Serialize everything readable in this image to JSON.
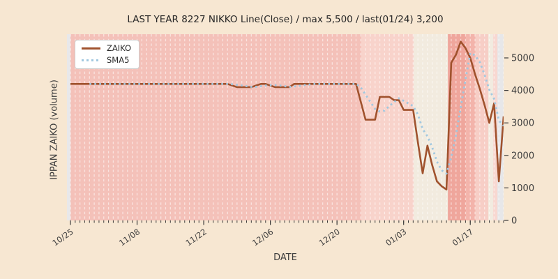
{
  "title": "LAST YEAR 8227 NIKKO Line(Close) / max 5,500 / last(01/24) 3,200",
  "axes": {
    "x_label": "DATE",
    "y_label": "IPPAN ZAIKO (volume)"
  },
  "legend": [
    {
      "label": "ZAIKO",
      "style": "solid",
      "color": "#a0522d"
    },
    {
      "label": "SMA5",
      "style": "dotted",
      "color": "#a1c8e0"
    }
  ],
  "colors": {
    "figure_bg": "#f7e7d2",
    "zaiko_line": "#a0522d",
    "sma5_line": "#a1c8e0",
    "grid_line": "rgba(255,255,255,0.55)",
    "tick_mark": "#3a3a3a",
    "tick_text": "#3d3d3d",
    "legend_bg": "#ffffff",
    "legend_border": "#cccccc"
  },
  "chart_data": {
    "type": "line",
    "title": "LAST YEAR 8227 NIKKO Line(Close) / max 5,500 / last(01/24) 3,200",
    "xlabel": "DATE",
    "ylabel": "IPPAN ZAIKO (volume)",
    "x_unit": "days since 10/25",
    "xlim": [
      -0.73,
      91
    ],
    "ylim": [
      0,
      5730
    ],
    "y_ticks": [
      0,
      1000,
      2000,
      3000,
      4000,
      5000
    ],
    "x_ticks": [
      {
        "day": 0,
        "label": "10/25"
      },
      {
        "day": 14,
        "label": "11/08"
      },
      {
        "day": 28,
        "label": "11/22"
      },
      {
        "day": 42,
        "label": "12/06"
      },
      {
        "day": 56,
        "label": "12/20"
      },
      {
        "day": 70,
        "label": "01/03"
      },
      {
        "day": 84,
        "label": "01/17"
      }
    ],
    "x_minor_tick_interval": 1,
    "grid": "vertical daily dashed white lines, no horizontal grid",
    "legend_position": "upper left",
    "max_value": 5500,
    "last": {
      "date": "01/24",
      "value": 3200
    },
    "series": [
      {
        "name": "ZAIKO",
        "color": "#a0522d",
        "style": "solid",
        "values": [
          4200,
          4200,
          4200,
          4200,
          4200,
          4200,
          4200,
          4200,
          4200,
          4200,
          4200,
          4200,
          4200,
          4200,
          4200,
          4200,
          4200,
          4200,
          4200,
          4200,
          4200,
          4200,
          4200,
          4200,
          4200,
          4200,
          4200,
          4200,
          4200,
          4200,
          4200,
          4200,
          4200,
          4200,
          4150,
          4100,
          4100,
          4100,
          4100,
          4150,
          4200,
          4200,
          4150,
          4100,
          4100,
          4100,
          4100,
          4200,
          4200,
          4200,
          4200,
          4200,
          4200,
          4200,
          4200,
          4200,
          4200,
          4200,
          4200,
          4200,
          4200,
          3650,
          3100,
          3100,
          3100,
          3800,
          3800,
          3800,
          3700,
          3700,
          3400,
          3400,
          3400,
          2400,
          1450,
          2300,
          1700,
          1200,
          1050,
          950,
          4850,
          5100,
          5500,
          5300,
          5000,
          4500,
          4050,
          3550,
          3000,
          3600,
          1200,
          3200
        ]
      },
      {
        "name": "SMA5",
        "color": "#a1c8e0",
        "style": "dotted",
        "derived": "5-day trailing moving average of ZAIKO"
      }
    ],
    "background_bands": [
      {
        "from": -0.73,
        "to": 0,
        "color": "#e8e8ea"
      },
      {
        "from": 0,
        "to": 61.1,
        "color": "#f4c1b9"
      },
      {
        "from": 61.1,
        "to": 72.1,
        "color": "#f8d3cb"
      },
      {
        "from": 72.1,
        "to": 79.3,
        "color": "#f2ebdf"
      },
      {
        "from": 79.3,
        "to": 83.1,
        "color": "#efa69c"
      },
      {
        "from": 83.1,
        "to": 85.1,
        "color": "#f3b4ab"
      },
      {
        "from": 85.1,
        "to": 87.8,
        "color": "#f7cec6"
      },
      {
        "from": 87.8,
        "to": 88.8,
        "color": "#f2ebe0"
      },
      {
        "from": 88.8,
        "to": 89.7,
        "color": "#f8d8d1"
      },
      {
        "from": 89.7,
        "to": 91,
        "color": "#e7e7e9"
      }
    ]
  }
}
